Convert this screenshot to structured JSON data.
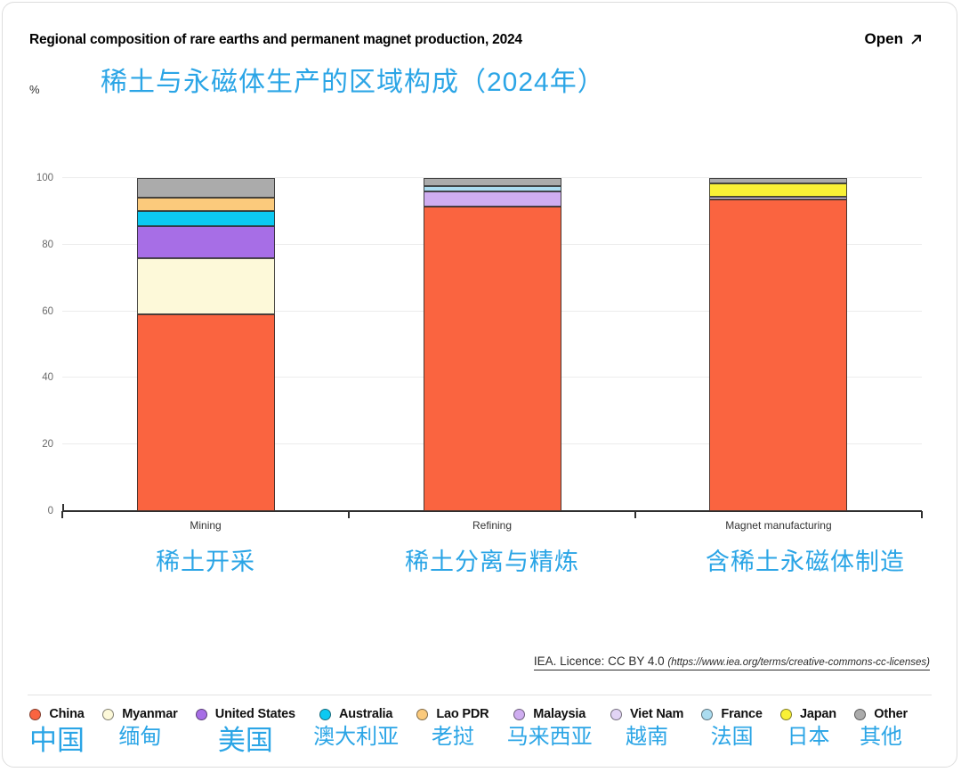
{
  "header": {
    "title": "Regional composition of rare earths and permanent magnet production, 2024",
    "open_label": "Open"
  },
  "subtitle_zh": "稀土与永磁体生产的区域构成（2024年）",
  "y_axis_unit": "%",
  "licence": {
    "text": "IEA. Licence: CC BY 4.0 ",
    "url_text": "(https://www.iea.org/terms/creative-commons-cc-licenses)"
  },
  "accent": {
    "translation_blue": "#2ba5e6",
    "china_orange": "#fa6440"
  },
  "chart_data": {
    "type": "bar",
    "stacked": true,
    "unit": "%",
    "title": "Regional composition of rare earths and permanent magnet production, 2024",
    "title_zh": "稀土与永磁体生产的区域构成（2024年）",
    "categories": [
      "Mining",
      "Refining",
      "Magnet manufacturing"
    ],
    "categories_zh": [
      "稀土开采",
      "稀土分离与精炼",
      "含稀土永磁体制造"
    ],
    "ylim": [
      0,
      100
    ],
    "yticks": [
      0,
      20,
      40,
      60,
      80,
      100
    ],
    "grid": "horizontal",
    "legend_position": "bottom",
    "series": [
      {
        "name": "China",
        "name_zh": "中国",
        "zh_large": true,
        "color": "#fa6440",
        "values": [
          59,
          91.5,
          93.5
        ]
      },
      {
        "name": "Myanmar",
        "name_zh": "缅甸",
        "zh_large": false,
        "color": "#fdf9d9",
        "values": [
          17,
          0,
          0
        ]
      },
      {
        "name": "United States",
        "name_zh": "美国",
        "zh_large": true,
        "color": "#a76ee6",
        "values": [
          9.5,
          0,
          0
        ]
      },
      {
        "name": "Australia",
        "name_zh": "澳大利亚",
        "zh_large": false,
        "color": "#0cc9f2",
        "values": [
          4.5,
          0,
          0
        ]
      },
      {
        "name": "Lao PDR",
        "name_zh": "老挝",
        "zh_large": false,
        "color": "#fbca7c",
        "values": [
          4,
          0,
          0
        ]
      },
      {
        "name": "Malaysia",
        "name_zh": "马来西亚",
        "zh_large": false,
        "color": "#cfadf0",
        "values": [
          0,
          4.5,
          0
        ]
      },
      {
        "name": "Viet Nam",
        "name_zh": "越南",
        "zh_large": false,
        "color": "#e2d4f5",
        "values": [
          0,
          0,
          1
        ]
      },
      {
        "name": "France",
        "name_zh": "法国",
        "zh_large": false,
        "color": "#abdcf0",
        "values": [
          0,
          1.5,
          0
        ]
      },
      {
        "name": "Japan",
        "name_zh": "日本",
        "zh_large": false,
        "color": "#f9f136",
        "values": [
          0,
          0,
          4
        ]
      },
      {
        "name": "Other",
        "name_zh": "其他",
        "zh_large": false,
        "color": "#ababab",
        "values": [
          6,
          2.5,
          1.5
        ]
      }
    ]
  }
}
